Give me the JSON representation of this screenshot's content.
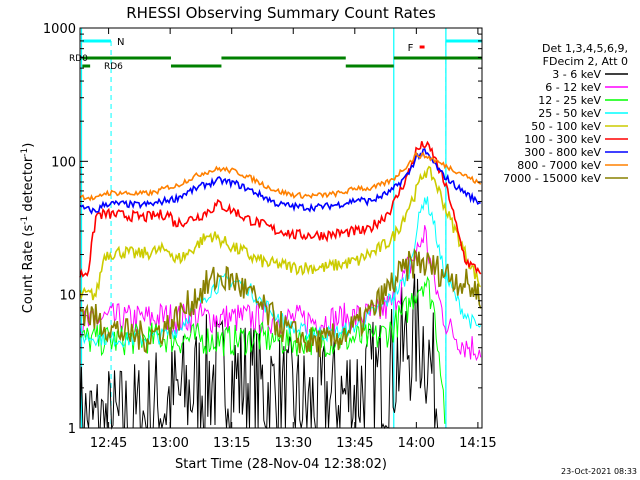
{
  "chart_data": {
    "type": "line",
    "title": "RHESSI Observing Summary Count Rates",
    "xlabel": "Start Time (28-Nov-04 12:38:02)",
    "ylabel_main": "Count Rate (s",
    "ylabel_sup1": "-1",
    "ylabel_mid": " detector",
    "ylabel_sup2": "-1",
    "ylabel_end": ")",
    "yscale": "log",
    "ylim": [
      1,
      1000
    ],
    "xlim": [
      38.03,
      136.0
    ],
    "x_unit": "minutes after 12:00 UT",
    "x_ticks": [
      {
        "v": 45,
        "label": "12:45"
      },
      {
        "v": 60,
        "label": "13:00"
      },
      {
        "v": 75,
        "label": "13:15"
      },
      {
        "v": 90,
        "label": "13:30"
      },
      {
        "v": 105,
        "label": "13:45"
      },
      {
        "v": 120,
        "label": "14:00"
      },
      {
        "v": 135,
        "label": "14:15"
      }
    ],
    "y_ticks": [
      {
        "v": 1,
        "label": "1"
      },
      {
        "v": 10,
        "label": "10"
      },
      {
        "v": 100,
        "label": "100"
      },
      {
        "v": 1000,
        "label": "1000"
      }
    ],
    "legend": {
      "position": "top-right",
      "header": [
        "Det 1,3,4,5,6,9,",
        "FDecim 2, Att 0"
      ]
    },
    "series": [
      {
        "name": "3 - 6 keV",
        "color": "#000000",
        "x": [
          38.03,
          44,
          50,
          54,
          58,
          62,
          66,
          70,
          74,
          78,
          82,
          86,
          90,
          94,
          98,
          102,
          106,
          110,
          114,
          116,
          118,
          120,
          122,
          124,
          126
        ],
        "y": [
          1.1,
          1.0,
          1.05,
          1.2,
          1.5,
          1.7,
          2.0,
          2.4,
          2.5,
          2.3,
          2.0,
          1.8,
          1.5,
          1.4,
          1.6,
          1.7,
          2.0,
          2.2,
          2.8,
          3.5,
          4.2,
          5.0,
          4.5,
          2.5,
          1.0
        ]
      },
      {
        "name": "6 - 12 keV",
        "color": "#ff00ff",
        "x": [
          38.03,
          41,
          42,
          46,
          50,
          54,
          58,
          62,
          66,
          70,
          74,
          78,
          82,
          86,
          90,
          94,
          98,
          102,
          106,
          110,
          114,
          116,
          118,
          120,
          122,
          124,
          126,
          128,
          130,
          132,
          134,
          136
        ],
        "y": [
          6.0,
          6.0,
          6.5,
          6.6,
          6.5,
          6.6,
          6.8,
          6.6,
          6.8,
          6.7,
          6.6,
          6.7,
          6.6,
          6.6,
          6.5,
          6.4,
          6.4,
          6.6,
          6.8,
          7.0,
          8.5,
          11,
          16,
          20,
          30,
          14,
          8,
          5.5,
          4.8,
          4.2,
          4.0,
          4.0
        ]
      },
      {
        "name": "12 - 25 keV",
        "color": "#00ff00",
        "x": [
          38.03,
          42,
          46,
          50,
          54,
          58,
          62,
          66,
          70,
          74,
          78,
          82,
          86,
          90,
          94,
          98,
          102,
          106,
          110,
          114,
          118,
          120,
          122,
          124,
          126,
          127
        ],
        "y": [
          4.6,
          4.6,
          4.5,
          4.6,
          4.7,
          4.8,
          4.6,
          4.7,
          4.6,
          4.5,
          4.6,
          4.7,
          4.6,
          4.5,
          4.6,
          4.5,
          4.6,
          4.7,
          4.7,
          5.5,
          8.0,
          11,
          13,
          9.0,
          3.0,
          1.2
        ]
      },
      {
        "name": "25 - 50 keV",
        "color": "#00ffff",
        "x": [
          38.03,
          41,
          46,
          50,
          54,
          58,
          62,
          66,
          70,
          74,
          78,
          82,
          86,
          90,
          94,
          98,
          102,
          106,
          110,
          114,
          118,
          120,
          122,
          124,
          126,
          128,
          130,
          132,
          134,
          136
        ],
        "y": [
          4.8,
          4.8,
          4.7,
          4.6,
          4.7,
          4.9,
          5.5,
          8.0,
          11,
          13,
          12,
          9,
          7,
          5.5,
          5.2,
          5.1,
          5.3,
          6.0,
          7.5,
          9.5,
          14,
          30,
          55,
          38,
          18,
          12,
          9,
          7,
          6,
          5.5
        ]
      },
      {
        "name": "50 - 100 keV",
        "color": "#cccc00",
        "x": [
          38.03,
          42,
          44,
          48,
          52,
          56,
          60,
          61,
          64,
          68,
          70,
          72,
          74,
          76,
          78,
          80,
          82,
          84,
          86,
          90,
          94,
          98,
          102,
          106,
          108,
          110,
          114,
          116,
          118,
          120,
          122,
          124,
          126,
          128,
          130,
          132,
          134,
          136
        ],
        "y": [
          10,
          10,
          20,
          21,
          20,
          21,
          22,
          18,
          20,
          26,
          28,
          26,
          24,
          22,
          21,
          19,
          18,
          17,
          17,
          16,
          16,
          16,
          17,
          18,
          20,
          21,
          26,
          33,
          45,
          60,
          85,
          78,
          55,
          38,
          28,
          20,
          15,
          11
        ]
      },
      {
        "name": "100 - 300 keV",
        "color": "#ff0000",
        "x": [
          38.03,
          40,
          42,
          44,
          46,
          50,
          54,
          58,
          60,
          61,
          64,
          68,
          70,
          72,
          74,
          76,
          78,
          82,
          84,
          86,
          88,
          90,
          94,
          98,
          102,
          106,
          108,
          110,
          112,
          114,
          116,
          118,
          120,
          122,
          124,
          126,
          128,
          130,
          132,
          134,
          136
        ],
        "y": [
          14,
          15,
          40,
          40,
          40,
          39,
          38,
          40,
          40,
          34,
          36,
          40,
          44,
          48,
          44,
          42,
          38,
          34,
          32,
          30,
          30,
          28,
          28,
          28,
          29,
          30,
          30,
          34,
          38,
          45,
          60,
          80,
          120,
          135,
          115,
          80,
          55,
          30,
          18,
          16,
          15
        ]
      },
      {
        "name": "300 - 800 keV",
        "color": "#0000ff",
        "x": [
          38.03,
          42,
          44,
          48,
          52,
          56,
          60,
          61,
          64,
          68,
          72,
          76,
          80,
          84,
          86,
          90,
          94,
          98,
          102,
          106,
          108,
          110,
          114,
          118,
          120,
          122,
          124,
          126,
          128,
          130,
          132,
          134,
          136
        ],
        "y": [
          45,
          42,
          48,
          48,
          47,
          48,
          52,
          52,
          58,
          66,
          72,
          68,
          60,
          52,
          48,
          46,
          45,
          46,
          48,
          52,
          50,
          52,
          60,
          80,
          108,
          118,
          100,
          82,
          72,
          64,
          58,
          52,
          48
        ]
      },
      {
        "name": "800 - 7000 keV",
        "color": "#ff8000",
        "x": [
          38.03,
          42,
          44,
          48,
          52,
          56,
          60,
          61,
          64,
          68,
          72,
          76,
          80,
          84,
          86,
          90,
          94,
          98,
          102,
          106,
          108,
          110,
          114,
          118,
          120,
          122,
          124,
          126,
          128,
          130,
          132,
          134,
          136
        ],
        "y": [
          55,
          52,
          58,
          58,
          57,
          58,
          65,
          64,
          72,
          82,
          88,
          84,
          74,
          64,
          60,
          56,
          55,
          56,
          58,
          64,
          62,
          64,
          72,
          95,
          112,
          110,
          104,
          96,
          90,
          84,
          78,
          72,
          66
        ]
      },
      {
        "name": "7000 - 15000 keV",
        "color": "#888000",
        "x": [
          38.03,
          42,
          46,
          50,
          54,
          58,
          60,
          62,
          64,
          66,
          68,
          70,
          72,
          74,
          76,
          78,
          80,
          82,
          84,
          86,
          88,
          90,
          92,
          94,
          98,
          102,
          106,
          110,
          114,
          116,
          118,
          120,
          122,
          124,
          126,
          128,
          130,
          132,
          134,
          136
        ],
        "y": [
          8.0,
          6.5,
          5.5,
          5.0,
          4.8,
          5.5,
          6.0,
          6.8,
          8.0,
          9.5,
          11,
          12.5,
          13.5,
          13,
          12.5,
          11,
          9.5,
          8.2,
          7.0,
          6.2,
          5.5,
          5.0,
          4.6,
          4.4,
          4.4,
          5.0,
          6.0,
          8.0,
          12,
          14,
          16,
          18,
          17,
          16,
          15,
          14,
          13,
          12,
          11,
          10
        ]
      }
    ],
    "annotations": {
      "label_N": "N",
      "label_F": "F",
      "label_RD0": "RD0",
      "label_RD6": "RD6",
      "N_bars": [
        [
          38.6,
          45.6
        ],
        [
          127.2,
          136.0
        ]
      ],
      "N_lines": [
        45.6,
        127.2,
        136.0
      ],
      "F_marker": [
        120.8,
        122.0
      ],
      "RD0_bars": [
        [
          38.6,
          60.2
        ],
        [
          72.5,
          102.8
        ],
        [
          114.5,
          136.0
        ]
      ],
      "RD6_bars": [
        [
          38.6,
          40.5
        ],
        [
          60.2,
          72.5
        ],
        [
          102.8,
          114.5
        ]
      ],
      "cyan_solid_lines": [
        38.4,
        114.5,
        127.2
      ],
      "F_line": 127.2
    }
  },
  "footer_date": "23-Oct-2021 08:33"
}
